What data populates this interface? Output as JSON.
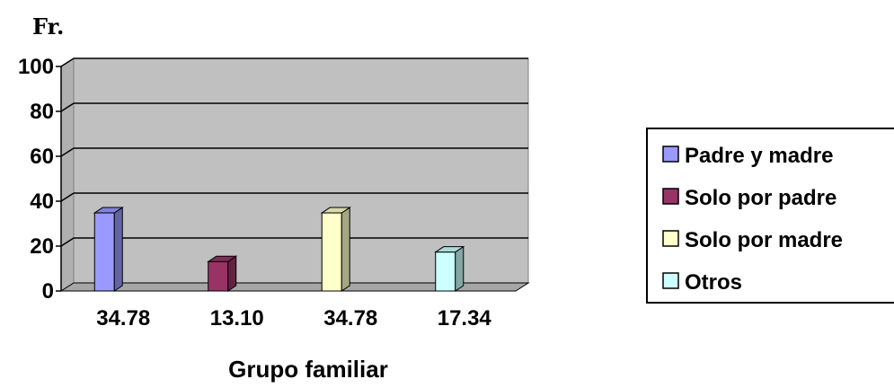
{
  "chart_data": {
    "type": "bar",
    "ylabel": "Fr.",
    "xlabel": "Grupo familiar",
    "ylim": [
      0,
      100
    ],
    "yticks": [
      "0",
      "20",
      "40",
      "60",
      "80",
      "100"
    ],
    "grid": true,
    "legend_position": "right",
    "categories": [
      "34.78",
      "13.10",
      "34.78",
      "17.34"
    ],
    "series": [
      {
        "name": "Padre y madre",
        "values": [
          34.78,
          0,
          0,
          0
        ],
        "color": "#9999ff"
      },
      {
        "name": "Solo por padre",
        "values": [
          0,
          13.1,
          0,
          0
        ],
        "color": "#993366"
      },
      {
        "name": "Solo por madre",
        "values": [
          0,
          0,
          34.78,
          0
        ],
        "color": "#ffffcc"
      },
      {
        "name": "Otros",
        "values": [
          0,
          0,
          0,
          17.34
        ],
        "color": "#ccffff"
      }
    ]
  },
  "colors": {
    "plot_wall": "#c0c0c0",
    "plot_floor": "#a6a6a6",
    "gridline": "#000000"
  }
}
